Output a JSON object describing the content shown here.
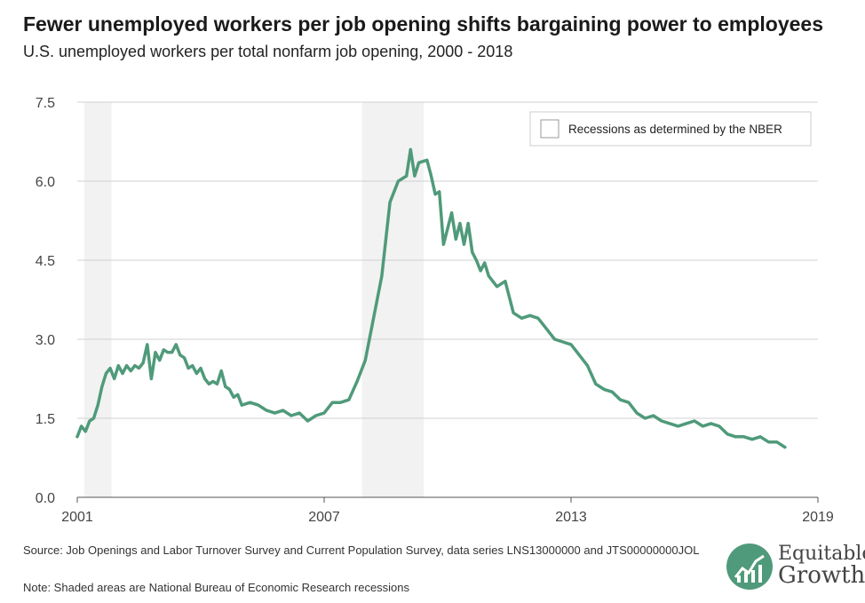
{
  "header": {
    "title": "Fewer unemployed workers per job opening shifts bargaining power to employees",
    "subtitle": "U.S. unemployed workers per total nonfarm job opening, 2000 - 2018"
  },
  "footer": {
    "source": "Source: Job Openings and Labor Turnover Survey and Current Population Survey, data series LNS13000000 and JTS00000000JOL",
    "note": "Note: Shaded areas are National Bureau of Economic Research recessions"
  },
  "logo": {
    "line1": "Equitable",
    "line2": "Growth",
    "icon": "rising-line-chart-icon"
  },
  "legend": {
    "label": "Recessions as determined by the NBER",
    "position": "top-right"
  },
  "colors": {
    "line": "#4f9a7a",
    "recession": "#f2f2f2",
    "grid": "#d0d0d0",
    "axis": "#555555"
  },
  "chart_data": {
    "type": "line",
    "title": "Fewer unemployed workers per job opening shifts bargaining power to employees",
    "subtitle": "U.S. unemployed workers per total nonfarm job opening, 2000 - 2018",
    "xlabel": "",
    "ylabel": "",
    "xlim": [
      2001,
      2019
    ],
    "ylim": [
      0,
      7.5
    ],
    "x_ticks": [
      2001,
      2007,
      2013,
      2019
    ],
    "x_tick_labels": [
      "2001",
      "2007",
      "2013",
      "2019"
    ],
    "y_ticks": [
      0,
      1.5,
      3,
      4.5,
      6,
      7.5
    ],
    "y_tick_labels": [
      "0.0",
      "1.5",
      "3.0",
      "4.5",
      "6.0",
      "7.5"
    ],
    "grid": true,
    "recessions": [
      {
        "start": 2001.17,
        "end": 2001.83
      },
      {
        "start": 2007.92,
        "end": 2009.42
      }
    ],
    "series": [
      {
        "x": [
          2001.0,
          2001.1,
          2001.2,
          2001.3,
          2001.4,
          2001.5,
          2001.6,
          2001.7,
          2001.8,
          2001.9,
          2002.0,
          2002.1,
          2002.2,
          2002.3,
          2002.4,
          2002.5,
          2002.6,
          2002.7,
          2002.8,
          2002.9,
          2003.0,
          2003.1,
          2003.2,
          2003.3,
          2003.4,
          2003.5,
          2003.6,
          2003.7,
          2003.8,
          2003.9,
          2004.0,
          2004.1,
          2004.2,
          2004.3,
          2004.4,
          2004.5,
          2004.6,
          2004.7,
          2004.8,
          2004.9,
          2005.0,
          2005.2,
          2005.4,
          2005.6,
          2005.8,
          2006.0,
          2006.2,
          2006.4,
          2006.6,
          2006.8,
          2007.0,
          2007.2,
          2007.4,
          2007.6,
          2007.8,
          2008.0,
          2008.2,
          2008.4,
          2008.6,
          2008.8,
          2009.0,
          2009.1,
          2009.2,
          2009.3,
          2009.5,
          2009.6,
          2009.7,
          2009.8,
          2009.9,
          2010.0,
          2010.1,
          2010.2,
          2010.3,
          2010.4,
          2010.5,
          2010.6,
          2010.7,
          2010.8,
          2010.9,
          2011.0,
          2011.2,
          2011.4,
          2011.6,
          2011.8,
          2012.0,
          2012.2,
          2012.4,
          2012.6,
          2012.8,
          2013.0,
          2013.2,
          2013.4,
          2013.6,
          2013.8,
          2014.0,
          2014.2,
          2014.4,
          2014.6,
          2014.8,
          2015.0,
          2015.2,
          2015.4,
          2015.6,
          2015.8,
          2016.0,
          2016.2,
          2016.4,
          2016.6,
          2016.8,
          2017.0,
          2017.2,
          2017.4,
          2017.6,
          2017.8,
          2018.0,
          2018.2
        ],
        "values": [
          1.15,
          1.35,
          1.25,
          1.45,
          1.5,
          1.75,
          2.1,
          2.35,
          2.45,
          2.25,
          2.5,
          2.35,
          2.5,
          2.4,
          2.5,
          2.45,
          2.55,
          2.9,
          2.25,
          2.75,
          2.6,
          2.8,
          2.75,
          2.75,
          2.9,
          2.7,
          2.65,
          2.45,
          2.5,
          2.35,
          2.45,
          2.25,
          2.15,
          2.2,
          2.15,
          2.4,
          2.1,
          2.05,
          1.9,
          1.95,
          1.75,
          1.8,
          1.75,
          1.65,
          1.6,
          1.65,
          1.55,
          1.6,
          1.45,
          1.55,
          1.6,
          1.8,
          1.8,
          1.85,
          2.2,
          2.6,
          3.4,
          4.2,
          5.6,
          6.0,
          6.1,
          6.6,
          6.1,
          6.35,
          6.4,
          6.1,
          5.75,
          5.8,
          4.8,
          5.1,
          5.4,
          4.9,
          5.2,
          4.8,
          5.2,
          4.65,
          4.5,
          4.3,
          4.45,
          4.2,
          4.0,
          4.1,
          3.5,
          3.4,
          3.45,
          3.4,
          3.2,
          3.0,
          2.95,
          2.9,
          2.7,
          2.5,
          2.15,
          2.05,
          2.0,
          1.85,
          1.8,
          1.6,
          1.5,
          1.55,
          1.45,
          1.4,
          1.35,
          1.4,
          1.45,
          1.35,
          1.4,
          1.35,
          1.2,
          1.15,
          1.15,
          1.1,
          1.15,
          1.05,
          1.05,
          0.95
        ]
      }
    ]
  }
}
